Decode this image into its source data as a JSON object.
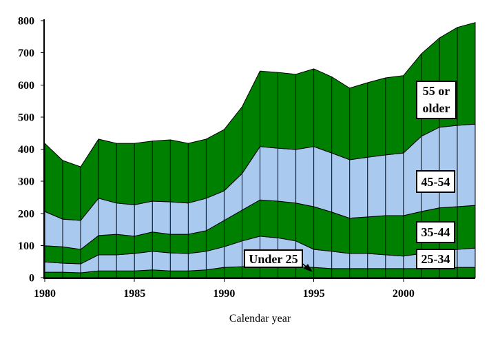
{
  "page": {
    "background": "#ffffff"
  },
  "chart_data": {
    "type": "area",
    "stacked": true,
    "title": "",
    "xlabel": "Calendar year",
    "ylabel": "",
    "grid": "vertical-year-dividers-inside-area",
    "legend_position": "inline-label-boxes",
    "axis_color": "#000000",
    "ylim": [
      0,
      800
    ],
    "y_ticks": [
      0,
      100,
      200,
      300,
      400,
      500,
      600,
      700,
      800
    ],
    "x": [
      1980,
      1981,
      1982,
      1983,
      1984,
      1985,
      1986,
      1987,
      1988,
      1989,
      1990,
      1991,
      1992,
      1993,
      1994,
      1995,
      1996,
      1997,
      1998,
      1999,
      2000,
      2001,
      2002,
      2003,
      2004
    ],
    "x_tick_years": [
      1980,
      1985,
      1990,
      1995,
      2000
    ],
    "x_tick_labels": [
      "1980",
      "1985",
      "1990",
      "1995",
      "2000"
    ],
    "series": [
      {
        "name": "Under 25",
        "color": "#008000",
        "values": [
          17,
          17,
          15,
          21,
          21,
          21,
          24,
          21,
          21,
          24,
          32,
          34,
          39,
          34,
          34,
          32,
          28,
          28,
          28,
          28,
          28,
          28,
          28,
          32,
          32
        ]
      },
      {
        "name": "25-34",
        "color": "#A9C9EF",
        "values": [
          32,
          28,
          28,
          50,
          50,
          54,
          58,
          56,
          54,
          58,
          64,
          80,
          90,
          90,
          80,
          56,
          54,
          47,
          47,
          43,
          39,
          47,
          54,
          56,
          60
        ]
      },
      {
        "name": "35-44",
        "color": "#008000",
        "values": [
          50,
          51,
          45,
          60,
          64,
          54,
          60,
          58,
          60,
          64,
          82,
          96,
          113,
          114,
          118,
          133,
          122,
          110,
          114,
          122,
          126,
          131,
          135,
          133,
          133
        ]
      },
      {
        "name": "45-54",
        "color": "#A9C9EF",
        "values": [
          107,
          86,
          90,
          116,
          97,
          98,
          96,
          101,
          97,
          101,
          92,
          114,
          166,
          165,
          167,
          187,
          184,
          182,
          186,
          189,
          195,
          234,
          251,
          253,
          253
        ]
      },
      {
        "name": "55 or older",
        "color": "#008000",
        "values": [
          212,
          183,
          167,
          184,
          186,
          191,
          187,
          193,
          186,
          184,
          191,
          208,
          235,
          236,
          234,
          242,
          237,
          223,
          232,
          240,
          241,
          257,
          278,
          305,
          316
        ]
      }
    ],
    "annotations": {
      "label_55_line1": "55 or",
      "label_55_line2": "older",
      "label_45": "45-54",
      "label_35": "35-44",
      "label_25": "25-34",
      "label_under25": "Under 25"
    }
  }
}
